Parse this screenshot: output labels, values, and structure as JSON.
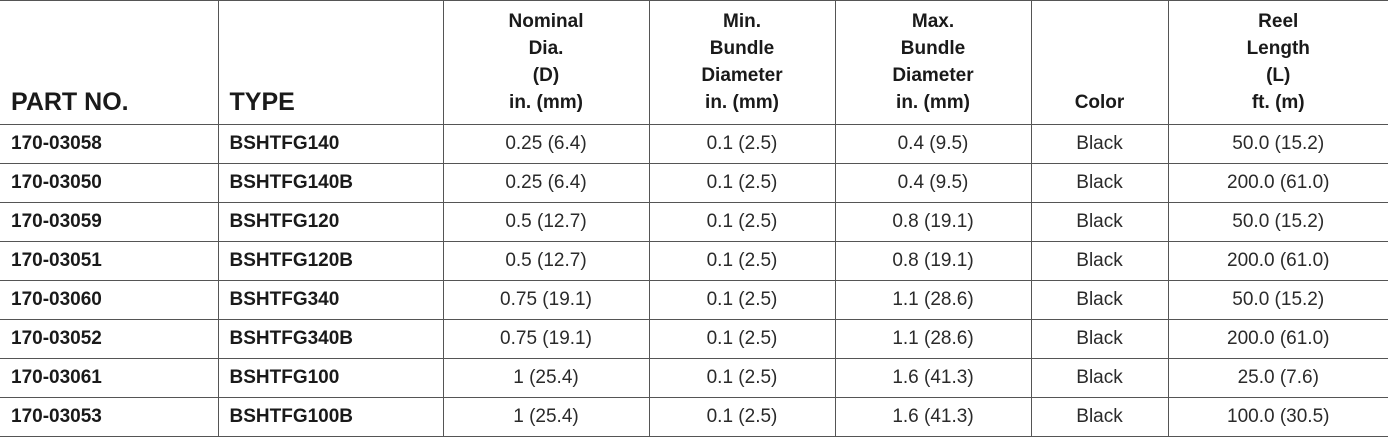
{
  "table": {
    "headers": [
      {
        "lines": [
          "PART NO."
        ]
      },
      {
        "lines": [
          "TYPE"
        ]
      },
      {
        "lines": [
          "Nominal",
          "Dia.",
          "(D)",
          "in. (mm)"
        ]
      },
      {
        "lines": [
          "Min.",
          "Bundle",
          "Diameter",
          "in. (mm)"
        ]
      },
      {
        "lines": [
          "Max.",
          "Bundle",
          "Diameter",
          "in. (mm)"
        ]
      },
      {
        "lines": [
          "Color"
        ]
      },
      {
        "lines": [
          "Reel",
          "Length",
          "(L)",
          "ft. (m)"
        ]
      }
    ],
    "rows": [
      [
        "170-03058",
        "BSHTFG140",
        "0.25 (6.4)",
        "0.1 (2.5)",
        "0.4 (9.5)",
        "Black",
        "50.0 (15.2)"
      ],
      [
        "170-03050",
        "BSHTFG140B",
        "0.25 (6.4)",
        "0.1 (2.5)",
        "0.4 (9.5)",
        "Black",
        "200.0 (61.0)"
      ],
      [
        "170-03059",
        "BSHTFG120",
        "0.5 (12.7)",
        "0.1 (2.5)",
        "0.8 (19.1)",
        "Black",
        "50.0 (15.2)"
      ],
      [
        "170-03051",
        "BSHTFG120B",
        "0.5 (12.7)",
        "0.1 (2.5)",
        "0.8 (19.1)",
        "Black",
        "200.0 (61.0)"
      ],
      [
        "170-03060",
        "BSHTFG340",
        "0.75 (19.1)",
        "0.1 (2.5)",
        "1.1 (28.6)",
        "Black",
        "50.0 (15.2)"
      ],
      [
        "170-03052",
        "BSHTFG340B",
        "0.75 (19.1)",
        "0.1 (2.5)",
        "1.1 (28.6)",
        "Black",
        "200.0 (61.0)"
      ],
      [
        "170-03061",
        "BSHTFG100",
        "1 (25.4)",
        "0.1 (2.5)",
        "1.6 (41.3)",
        "Black",
        "25.0 (7.6)"
      ],
      [
        "170-03053",
        "BSHTFG100B",
        "1 (25.4)",
        "0.1 (2.5)",
        "1.6 (41.3)",
        "Black",
        "100.0 (30.5)"
      ]
    ]
  }
}
